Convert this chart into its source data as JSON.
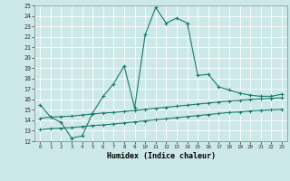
{
  "xlabel": "Humidex (Indice chaleur)",
  "xlim": [
    -0.5,
    23.5
  ],
  "ylim": [
    12,
    25
  ],
  "yticks": [
    12,
    13,
    14,
    15,
    16,
    17,
    18,
    19,
    20,
    21,
    22,
    23,
    24,
    25
  ],
  "xticks": [
    0,
    1,
    2,
    3,
    4,
    5,
    6,
    7,
    8,
    9,
    10,
    11,
    12,
    13,
    14,
    15,
    16,
    17,
    18,
    19,
    20,
    21,
    22,
    23
  ],
  "bg_color": "#cce8e8",
  "grid_color": "#b0d4d4",
  "line_color": "#1a7a6e",
  "line1_x": [
    0,
    1,
    2,
    3,
    4,
    5,
    6,
    7,
    8,
    9,
    10,
    11,
    12,
    13,
    14,
    15,
    16,
    17,
    18,
    19,
    20,
    21,
    22,
    23
  ],
  "line1_y": [
    15.5,
    14.3,
    13.8,
    12.3,
    12.5,
    14.7,
    16.3,
    17.5,
    19.2,
    15.2,
    22.2,
    24.8,
    23.3,
    23.8,
    23.3,
    18.3,
    18.4,
    17.2,
    16.9,
    16.6,
    16.4,
    16.3,
    16.3,
    16.5
  ],
  "line2_x": [
    0,
    1,
    2,
    3,
    4,
    5,
    6,
    7,
    8,
    9,
    10,
    11,
    12,
    13,
    14,
    15,
    16,
    17,
    18,
    19,
    20,
    21,
    22,
    23
  ],
  "line2_y": [
    14.2,
    14.3,
    14.35,
    14.4,
    14.5,
    14.6,
    14.7,
    14.75,
    14.85,
    14.95,
    15.05,
    15.15,
    15.25,
    15.35,
    15.45,
    15.55,
    15.65,
    15.75,
    15.85,
    15.9,
    16.0,
    16.05,
    16.1,
    16.15
  ],
  "line3_x": [
    0,
    1,
    2,
    3,
    4,
    5,
    6,
    7,
    8,
    9,
    10,
    11,
    12,
    13,
    14,
    15,
    16,
    17,
    18,
    19,
    20,
    21,
    22,
    23
  ],
  "line3_y": [
    13.1,
    13.2,
    13.25,
    13.3,
    13.4,
    13.5,
    13.55,
    13.65,
    13.75,
    13.85,
    13.95,
    14.05,
    14.15,
    14.25,
    14.35,
    14.45,
    14.55,
    14.65,
    14.75,
    14.8,
    14.9,
    14.95,
    15.0,
    15.05
  ]
}
